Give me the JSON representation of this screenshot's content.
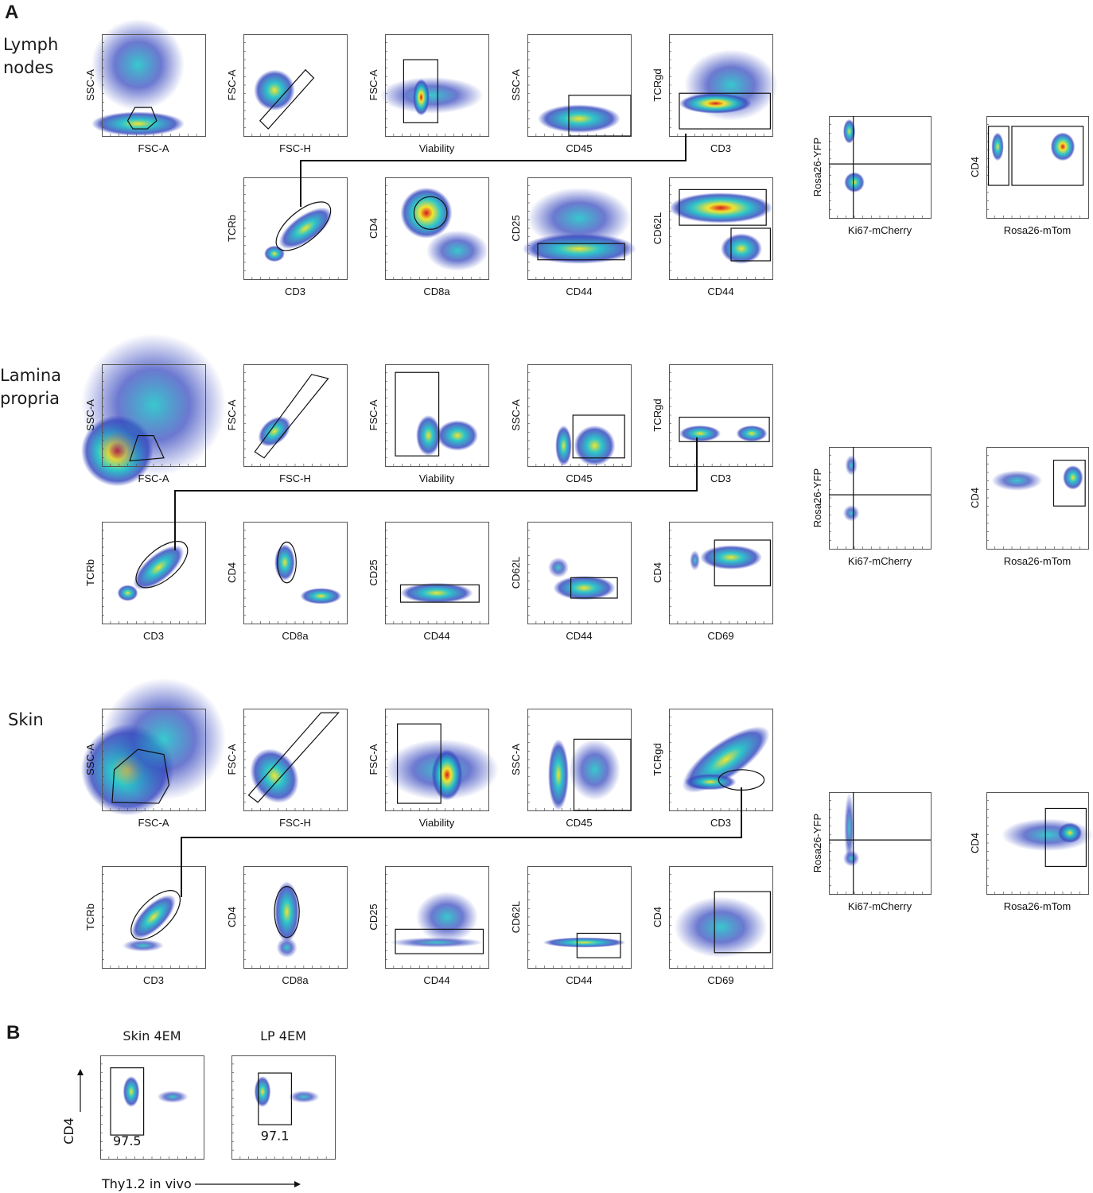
{
  "panel_letters": [
    "A",
    "B"
  ],
  "row_labels": {
    "lymph_nodes": "Lymph\nnodes",
    "lamina_propria": "Lamina\npropria",
    "skin": "Skin"
  },
  "sections": {
    "lymph_nodes": {
      "row1": [
        {
          "x": "FSC-A",
          "y": "SSC-A"
        },
        {
          "x": "FSC-H",
          "y": "FSC-A"
        },
        {
          "x": "Viability",
          "y": "FSC-A"
        },
        {
          "x": "CD45",
          "y": "SSC-A"
        },
        {
          "x": "CD3",
          "y": "TCRgd"
        }
      ],
      "row2": [
        {
          "x": "CD3",
          "y": "TCRb"
        },
        {
          "x": "CD8a",
          "y": "CD4"
        },
        {
          "x": "CD44",
          "y": "CD25"
        },
        {
          "x": "CD44",
          "y": "CD62L"
        }
      ],
      "extra": [
        {
          "x": "Ki67-mCherry",
          "y": "Rosa26-YFP"
        },
        {
          "x": "Rosa26-mTom",
          "y": "CD4"
        }
      ]
    },
    "lamina_propria": {
      "row1": [
        {
          "x": "FSC-A",
          "y": "SSC-A"
        },
        {
          "x": "FSC-H",
          "y": "FSC-A"
        },
        {
          "x": "Viability",
          "y": "FSC-A"
        },
        {
          "x": "CD45",
          "y": "SSC-A"
        },
        {
          "x": "CD3",
          "y": "TCRgd"
        }
      ],
      "row2": [
        {
          "x": "CD3",
          "y": "TCRb"
        },
        {
          "x": "CD8a",
          "y": "CD4"
        },
        {
          "x": "CD44",
          "y": "CD25"
        },
        {
          "x": "CD44",
          "y": "CD62L"
        },
        {
          "x": "CD69",
          "y": "CD4"
        }
      ],
      "extra": [
        {
          "x": "Ki67-mCherry",
          "y": "Rosa26-YFP"
        },
        {
          "x": "Rosa26-mTom",
          "y": "CD4"
        }
      ]
    },
    "skin": {
      "row1": [
        {
          "x": "FSC-A",
          "y": "SSC-A"
        },
        {
          "x": "FSC-H",
          "y": "FSC-A"
        },
        {
          "x": "Viability",
          "y": "FSC-A"
        },
        {
          "x": "CD45",
          "y": "SSC-A"
        },
        {
          "x": "CD3",
          "y": "TCRgd"
        }
      ],
      "row2": [
        {
          "x": "CD3",
          "y": "TCRb"
        },
        {
          "x": "CD8a",
          "y": "CD4"
        },
        {
          "x": "CD44",
          "y": "CD25"
        },
        {
          "x": "CD44",
          "y": "CD62L"
        },
        {
          "x": "CD69",
          "y": "CD4"
        }
      ],
      "extra": [
        {
          "x": "Ki67-mCherry",
          "y": "Rosa26-YFP"
        },
        {
          "x": "Rosa26-mTom",
          "y": "CD4"
        }
      ]
    }
  },
  "panel_b": {
    "x_label": "Thy1.2 in vivo",
    "y_label": "CD4",
    "plots": [
      {
        "title": "Skin 4EM",
        "percentage": "97.5"
      },
      {
        "title": "LP 4EM",
        "percentage": "97.1"
      }
    ]
  },
  "colors": {
    "density_low": "#3b4cc0",
    "density_mid": "#22c3c8",
    "density_high": "#f2e530",
    "density_peak": "#d7191c",
    "gate": "#111111"
  }
}
